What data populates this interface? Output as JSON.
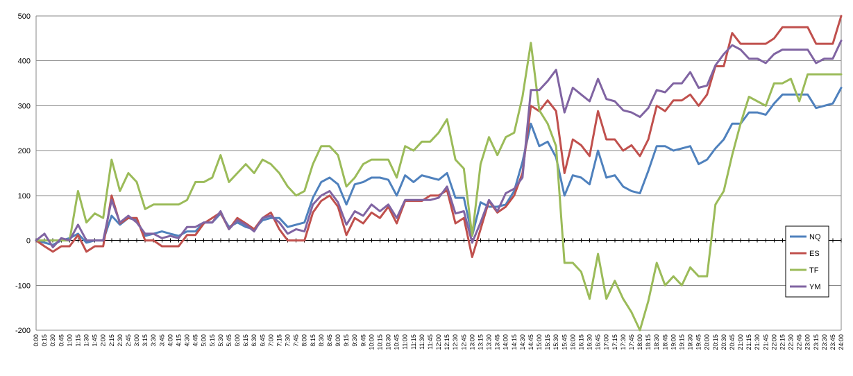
{
  "chart_data": {
    "type": "line",
    "title": "",
    "xlabel": "",
    "ylabel": "",
    "ylim": [
      -200,
      500
    ],
    "yticks": [
      -200,
      -100,
      0,
      100,
      200,
      300,
      400,
      500
    ],
    "grid": "horizontal",
    "legend_position": "right",
    "x": [
      "0:00",
      "0:15",
      "0:30",
      "0:45",
      "1:00",
      "1:15",
      "1:30",
      "1:45",
      "2:00",
      "2:15",
      "2:30",
      "2:45",
      "3:00",
      "3:15",
      "3:30",
      "3:45",
      "4:00",
      "4:15",
      "4:30",
      "4:45",
      "5:00",
      "5:15",
      "5:30",
      "5:45",
      "6:00",
      "6:15",
      "6:30",
      "6:45",
      "7:00",
      "7:15",
      "7:30",
      "7:45",
      "8:00",
      "8:15",
      "8:30",
      "8:45",
      "9:00",
      "9:15",
      "9:30",
      "9:45",
      "10:00",
      "10:15",
      "10:30",
      "10:45",
      "11:00",
      "11:15",
      "11:30",
      "11:45",
      "12:00",
      "12:15",
      "12:30",
      "12:45",
      "13:00",
      "13:15",
      "13:30",
      "13:45",
      "14:00",
      "14:15",
      "14:30",
      "14:45",
      "15:00",
      "15:15",
      "15:30",
      "15:45",
      "16:00",
      "16:15",
      "16:30",
      "16:45",
      "17:00",
      "17:15",
      "17:30",
      "17:45",
      "18:00",
      "18:15",
      "18:30",
      "18:45",
      "19:00",
      "19:15",
      "19:30",
      "19:45",
      "20:00",
      "20:15",
      "20:30",
      "20:45",
      "21:00",
      "21:15",
      "21:30",
      "21:45",
      "22:00",
      "22:15",
      "22:30",
      "22:45",
      "23:00",
      "23:15",
      "23:30",
      "23:45",
      "24:00"
    ],
    "series": [
      {
        "name": "NQ",
        "color": "#4f81bd",
        "values": [
          0,
          -5,
          -10,
          0,
          5,
          15,
          -5,
          0,
          0,
          55,
          35,
          50,
          45,
          10,
          15,
          20,
          15,
          10,
          20,
          20,
          40,
          40,
          60,
          30,
          40,
          30,
          25,
          45,
          50,
          50,
          30,
          35,
          40,
          95,
          130,
          140,
          125,
          80,
          125,
          130,
          140,
          140,
          135,
          100,
          145,
          130,
          145,
          140,
          135,
          150,
          95,
          95,
          10,
          85,
          75,
          75,
          80,
          110,
          175,
          260,
          210,
          220,
          185,
          100,
          145,
          140,
          125,
          200,
          140,
          145,
          120,
          110,
          105,
          155,
          210,
          210,
          200,
          205,
          210,
          170,
          180,
          205,
          225,
          260,
          260,
          285,
          285,
          280,
          305,
          325,
          325,
          325,
          325,
          295,
          300,
          305,
          340
        ]
      },
      {
        "name": "ES",
        "color": "#c0504d",
        "values": [
          0,
          -13,
          -25,
          -13,
          -13,
          12,
          -25,
          -13,
          -13,
          100,
          38,
          50,
          50,
          0,
          0,
          -13,
          -13,
          -13,
          12,
          12,
          38,
          50,
          62,
          25,
          50,
          38,
          25,
          50,
          62,
          25,
          0,
          0,
          0,
          62,
          88,
          100,
          75,
          12,
          50,
          38,
          62,
          50,
          75,
          38,
          88,
          88,
          88,
          100,
          100,
          112,
          38,
          50,
          -37,
          25,
          88,
          62,
          75,
          100,
          150,
          300,
          288,
          312,
          288,
          150,
          225,
          212,
          188,
          288,
          225,
          225,
          200,
          212,
          188,
          225,
          300,
          288,
          312,
          312,
          325,
          300,
          325,
          388,
          388,
          462,
          438,
          438,
          438,
          438,
          450,
          475,
          475,
          475,
          475,
          438,
          438,
          438,
          500
        ]
      },
      {
        "name": "TF",
        "color": "#9bbb59",
        "values": [
          0,
          0,
          0,
          0,
          0,
          110,
          40,
          60,
          50,
          180,
          110,
          150,
          130,
          70,
          80,
          80,
          80,
          80,
          90,
          130,
          130,
          140,
          190,
          130,
          150,
          170,
          150,
          180,
          170,
          150,
          120,
          100,
          110,
          170,
          210,
          210,
          190,
          120,
          140,
          170,
          180,
          180,
          180,
          140,
          210,
          200,
          220,
          220,
          240,
          270,
          180,
          160,
          10,
          170,
          230,
          190,
          230,
          240,
          320,
          440,
          290,
          260,
          210,
          -50,
          -50,
          -70,
          -130,
          -30,
          -130,
          -90,
          -130,
          -160,
          -200,
          -135,
          -50,
          -100,
          -80,
          -100,
          -60,
          -80,
          -80,
          80,
          110,
          190,
          260,
          320,
          310,
          300,
          350,
          350,
          360,
          310,
          370,
          370,
          370,
          370,
          370
        ]
      },
      {
        "name": "YM",
        "color": "#8064a2",
        "values": [
          0,
          15,
          -15,
          5,
          0,
          35,
          0,
          0,
          0,
          90,
          40,
          55,
          40,
          15,
          15,
          5,
          10,
          5,
          30,
          30,
          40,
          40,
          65,
          25,
          45,
          35,
          20,
          50,
          55,
          40,
          15,
          25,
          20,
          80,
          100,
          110,
          85,
          35,
          65,
          55,
          80,
          65,
          80,
          50,
          90,
          90,
          90,
          90,
          95,
          120,
          60,
          65,
          -5,
          40,
          90,
          65,
          105,
          115,
          140,
          335,
          335,
          355,
          380,
          285,
          340,
          325,
          310,
          360,
          315,
          310,
          290,
          285,
          275,
          295,
          335,
          330,
          350,
          350,
          375,
          340,
          345,
          390,
          415,
          435,
          425,
          405,
          405,
          395,
          415,
          425,
          425,
          425,
          425,
          395,
          405,
          405,
          445
        ]
      }
    ]
  }
}
